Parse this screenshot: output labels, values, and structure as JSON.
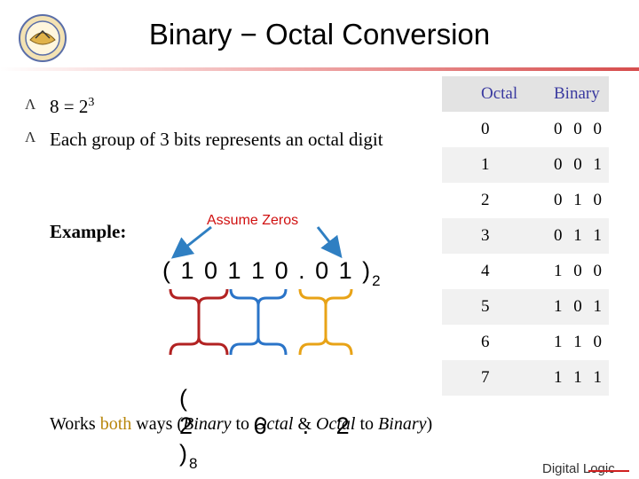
{
  "slide": {
    "title": "Binary − Octal Conversion",
    "bullets": [
      {
        "base": "8 = 2",
        "superscript": "3"
      },
      {
        "text": "Each group of 3 bits represents an octal digit"
      }
    ],
    "example_label": "Example:",
    "annotation": "Assume Zeros",
    "binary_expression": {
      "open": "(",
      "digits": "1 0 1 1 0 . 0 1",
      "close": ")",
      "base": "2"
    },
    "octal_expression": {
      "open": "(",
      "digits": "2       6    .   2",
      "close": ")",
      "base": "8"
    },
    "footer": {
      "t1": "Works ",
      "both": "both",
      "t2": " ways (",
      "binary": "Binary",
      "t3": " to ",
      "octal": "Octal",
      "t4": " & ",
      "octal2": "Octal",
      "t5": " to ",
      "binary2": "Binary",
      "t6": ")"
    },
    "brand": "Digital Logic"
  },
  "table": {
    "headers": [
      "Octal",
      "Binary"
    ],
    "rows": [
      [
        "0",
        "0 0 0"
      ],
      [
        "1",
        "0 0 1"
      ],
      [
        "2",
        "0 1 0"
      ],
      [
        "3",
        "0 1 1"
      ],
      [
        "4",
        "1 0 0"
      ],
      [
        "5",
        "1 0 1"
      ],
      [
        "6",
        "1 1 0"
      ],
      [
        "7",
        "1 1 1"
      ]
    ]
  },
  "colors": {
    "arrow": "#2f7fc2",
    "brace_red": "#b22222",
    "brace_blue": "#2a74c8",
    "brace_orange": "#e8a317",
    "header_text": "#3a3aa0",
    "highlight": "#b8860b"
  },
  "icons": {
    "logo": "university-seal-logo",
    "bullet": "caret-bullet-icon"
  }
}
